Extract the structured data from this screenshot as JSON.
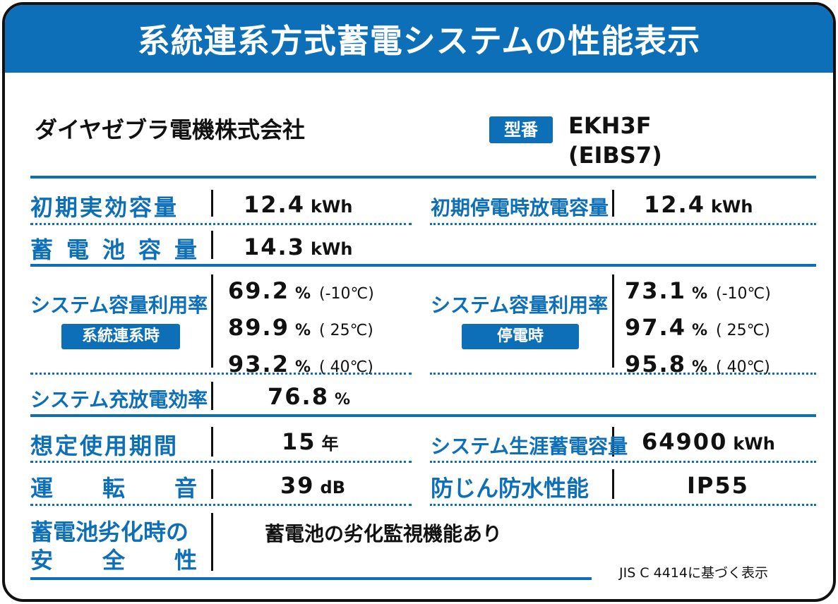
{
  "header": {
    "title": "系統連系方式蓄電システムの性能表示"
  },
  "company": "ダイヤゼブラ電機株式会社",
  "model": {
    "badge": "型番",
    "line1": "EKH3F",
    "line2": "(EIBS7)"
  },
  "rows": {
    "initial_capacity": {
      "label": "初期実効容量",
      "value": "12.4",
      "unit": "kWh"
    },
    "initial_outage_capacity": {
      "label": "初期停電時放電容量",
      "value": "12.4",
      "unit": "kWh"
    },
    "battery_capacity": {
      "label_chars": [
        "蓄",
        "電",
        "池",
        "容",
        "量"
      ],
      "value": "14.3",
      "unit": "kWh"
    },
    "utilization_grid": {
      "label": "システム容量利用率",
      "badge": "系統連系時",
      "entries": [
        {
          "value": "69.2",
          "unit": "%",
          "cond": "(-10℃)"
        },
        {
          "value": "89.9",
          "unit": "%",
          "cond": "( 25℃)"
        },
        {
          "value": "93.2",
          "unit": "%",
          "cond": "( 40℃)"
        }
      ]
    },
    "utilization_outage": {
      "label": "システム容量利用率",
      "badge": "停電時",
      "entries": [
        {
          "value": "73.1",
          "unit": "%",
          "cond": "(-10℃)"
        },
        {
          "value": "97.4",
          "unit": "%",
          "cond": "( 25℃)"
        },
        {
          "value": "95.8",
          "unit": "%",
          "cond": "( 40℃)"
        }
      ]
    },
    "efficiency": {
      "label": "システム充放電効率",
      "value": "76.8",
      "unit": "%"
    },
    "lifetime": {
      "label": "想定使用期間",
      "value": "15",
      "unit": "年"
    },
    "lifetime_capacity": {
      "label": "システム生涯蓄電容量",
      "value": "64900",
      "unit": "kWh"
    },
    "noise": {
      "label_chars": [
        "運",
        "転",
        "音"
      ],
      "value": "39",
      "unit": "dB"
    },
    "protection": {
      "label": "防じん防水性能",
      "value": "IP55"
    },
    "safety": {
      "label_line1": "蓄電池劣化時の",
      "label_line2_chars": [
        "安",
        "全",
        "性"
      ],
      "value": "蓄電池の劣化監視機能あり"
    }
  },
  "footnote": "JIS C 4414に基づく表示",
  "colors": {
    "accent": "#0c6fb7",
    "text": "#111111",
    "border": "#111111"
  }
}
